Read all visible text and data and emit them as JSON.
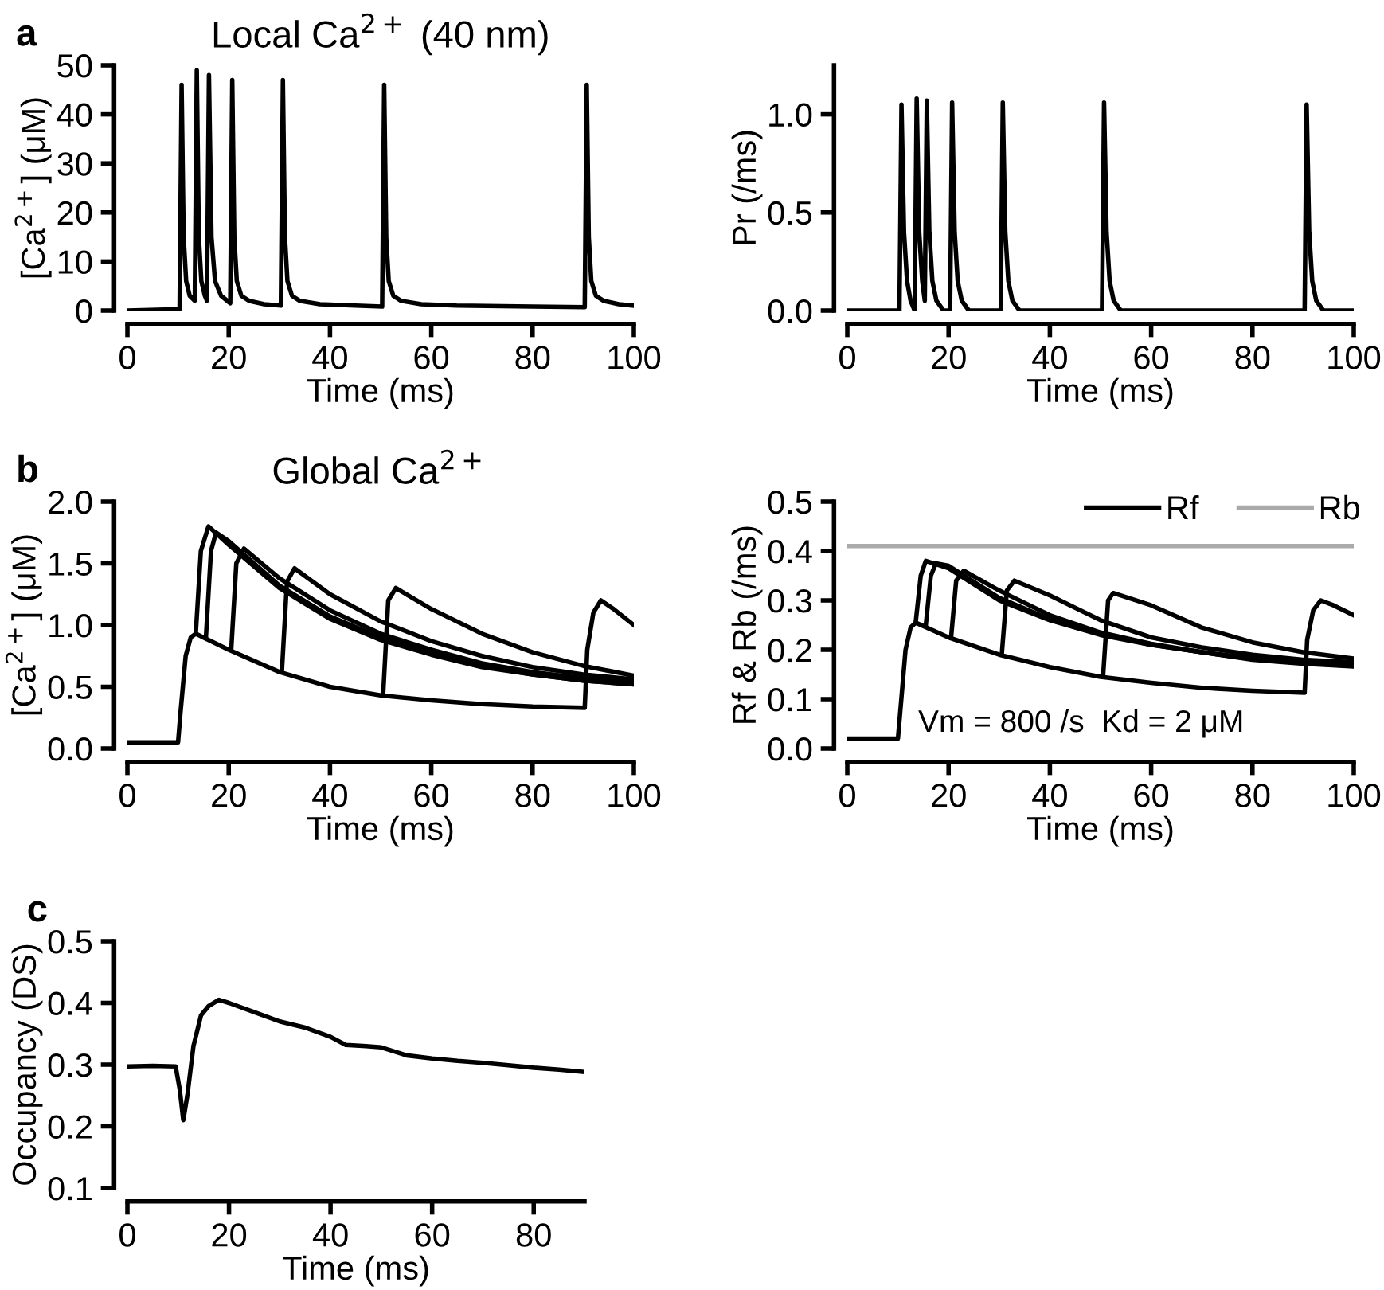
{
  "chart_data": [
    {
      "type": "line",
      "title": "Local Ca$^{2+}$ (40 nm)",
      "xlabel": "Time (ms)",
      "ylabel": "[Ca$^{2+}$] (μM)",
      "annotations": [
        "a"
      ],
      "xlim": [
        0,
        100
      ],
      "ylim": [
        0,
        50
      ],
      "xticks": [
        0,
        20,
        40,
        60,
        80,
        100
      ],
      "yticks": [
        0,
        10,
        20,
        30,
        40,
        50
      ],
      "grid": false,
      "legend": false,
      "marker": "none",
      "line_style": "solid",
      "series": [
        {
          "color": "#000000",
          "x": [
            0,
            10.3,
            10.7,
            11.1,
            11.6,
            12.3,
            13.3,
            13.7,
            14.1,
            14.6,
            15.3,
            15.7,
            16.1,
            16.6,
            17.3,
            18.5,
            20.3,
            20.7,
            21.1,
            21.6,
            22.5,
            24,
            27,
            30.3,
            30.7,
            31.1,
            31.6,
            32.5,
            34,
            38,
            45,
            50.3,
            50.7,
            51.1,
            51.6,
            52.5,
            54,
            58,
            65,
            80,
            90.3,
            90.7,
            91.1,
            91.6,
            92.5,
            94,
            97,
            100
          ],
          "values": [
            0,
            0.3,
            46,
            15,
            6,
            3,
            2,
            49,
            15,
            6,
            3,
            2,
            48,
            15,
            6,
            3,
            1.5,
            47,
            15,
            6,
            3,
            2,
            1.3,
            1,
            47,
            15,
            6,
            3,
            2,
            1.3,
            1,
            0.8,
            46,
            15,
            6,
            3,
            2,
            1.3,
            1,
            0.8,
            0.7,
            46,
            15,
            6,
            3,
            2,
            1.3,
            1
          ]
        }
      ]
    },
    {
      "type": "line",
      "xlabel": "Time (ms)",
      "ylabel": "Pr (/ms)",
      "xlim": [
        0,
        100
      ],
      "ylim": [
        0,
        1.25
      ],
      "xticks": [
        0,
        20,
        40,
        60,
        80,
        100
      ],
      "yticks": [
        {
          "value": 0,
          "label": "0.0"
        },
        {
          "value": 0.5,
          "label": "0.5"
        },
        {
          "value": 1,
          "label": "1.0"
        }
      ],
      "grid": false,
      "legend": false,
      "marker": "none",
      "line_style": "solid",
      "series": [
        {
          "color": "#000000",
          "x": [
            0,
            10.3,
            10.7,
            11.2,
            11.8,
            12.5,
            13.3,
            13.7,
            14.2,
            14.8,
            15.3,
            15.7,
            16.2,
            16.8,
            17.6,
            19,
            20.3,
            20.7,
            21.2,
            21.8,
            22.6,
            24,
            30.3,
            30.7,
            31.2,
            31.8,
            32.6,
            34,
            50.3,
            50.7,
            51.2,
            51.8,
            52.6,
            54,
            90.3,
            90.7,
            91.2,
            91.8,
            92.6,
            94,
            100
          ],
          "values": [
            0,
            0,
            1.05,
            0.4,
            0.15,
            0.05,
            0,
            1.08,
            0.4,
            0.15,
            0.05,
            1.07,
            0.4,
            0.15,
            0.05,
            0,
            0,
            1.06,
            0.4,
            0.15,
            0.05,
            0,
            0,
            1.06,
            0.4,
            0.15,
            0.05,
            0,
            0,
            1.06,
            0.4,
            0.15,
            0.05,
            0,
            0,
            1.05,
            0.4,
            0.15,
            0.05,
            0,
            0
          ]
        }
      ]
    },
    {
      "type": "line",
      "title": "Global Ca$^{2+}$",
      "xlabel": "Time (ms)",
      "ylabel": "[Ca$^{2+}$] (μM)",
      "annotations": [
        "b"
      ],
      "xlim": [
        0,
        100
      ],
      "ylim": [
        0,
        2
      ],
      "xticks": [
        0,
        20,
        40,
        60,
        80,
        100
      ],
      "yticks": [
        {
          "value": 0,
          "label": "0.0"
        },
        {
          "value": 0.5,
          "label": "0.5"
        },
        {
          "value": 1,
          "label": "1.0"
        },
        {
          "value": 1.5,
          "label": "1.5"
        },
        {
          "value": 2,
          "label": "2.0"
        }
      ],
      "grid": false,
      "legend": false,
      "marker": "none",
      "line_style": "solid",
      "series": [
        {
          "color": "#000000",
          "x": [
            0,
            10,
            10.5,
            11.5,
            12.5,
            13.5,
            20,
            30,
            40,
            50,
            60,
            70,
            80,
            90.3,
            90.8,
            92,
            93.5,
            96,
            100
          ],
          "values": [
            0.05,
            0.05,
            0.3,
            0.75,
            0.9,
            0.93,
            0.8,
            0.62,
            0.5,
            0.43,
            0.39,
            0.36,
            0.34,
            0.33,
            0.8,
            1.1,
            1.2,
            1.13,
            1
          ]
        },
        {
          "color": "#000000",
          "x": [
            13.5,
            14.5,
            16,
            20,
            30,
            40,
            50,
            60,
            70,
            80,
            90,
            100
          ],
          "values": [
            0.93,
            1.6,
            1.8,
            1.65,
            1.3,
            1.05,
            0.88,
            0.76,
            0.66,
            0.6,
            0.55,
            0.52
          ]
        },
        {
          "color": "#000000",
          "x": [
            15.5,
            16.5,
            17.5,
            20,
            30,
            40,
            50,
            60,
            70,
            80,
            90,
            100
          ],
          "values": [
            0.9,
            1.6,
            1.75,
            1.68,
            1.32,
            1.07,
            0.9,
            0.77,
            0.67,
            0.6,
            0.55,
            0.52
          ]
        },
        {
          "color": "#000000",
          "x": [
            20.5,
            21.5,
            23,
            30,
            40,
            50,
            60,
            70,
            80,
            90,
            100
          ],
          "values": [
            0.8,
            1.5,
            1.62,
            1.38,
            1.12,
            0.93,
            0.8,
            0.69,
            0.62,
            0.57,
            0.54
          ]
        },
        {
          "color": "#000000",
          "x": [
            30.5,
            31.5,
            33,
            40,
            50,
            60,
            70,
            80,
            90,
            100
          ],
          "values": [
            0.62,
            1.35,
            1.46,
            1.25,
            1.03,
            0.87,
            0.75,
            0.66,
            0.6,
            0.56
          ]
        },
        {
          "color": "#000000",
          "x": [
            50.5,
            51.5,
            53,
            60,
            70,
            80,
            90,
            100
          ],
          "values": [
            0.44,
            1.2,
            1.3,
            1.13,
            0.93,
            0.78,
            0.67,
            0.59
          ]
        }
      ]
    },
    {
      "type": "line",
      "xlabel": "Time (ms)",
      "ylabel": "Rf & Rb (/ms)",
      "annotations": [
        "Vm = 800 /s  Kd = 2 μM"
      ],
      "xlim": [
        0,
        100
      ],
      "ylim": [
        0,
        0.5
      ],
      "xticks": [
        0,
        20,
        40,
        60,
        80,
        100
      ],
      "yticks": [
        {
          "value": 0,
          "label": "0.0"
        },
        0.1,
        0.2,
        0.3,
        0.4,
        0.5
      ],
      "grid": false,
      "legend": "top right",
      "marker": "none",
      "line_style": "solid",
      "series": [
        {
          "name": "Rf",
          "color": "#000000",
          "x": [
            0,
            10,
            10.5,
            11.5,
            12.5,
            13.5,
            20,
            30,
            40,
            50,
            60,
            70,
            80,
            90.3,
            90.8,
            92,
            93.5,
            96,
            100
          ],
          "values": [
            0.02,
            0.02,
            0.08,
            0.2,
            0.245,
            0.255,
            0.225,
            0.19,
            0.165,
            0.145,
            0.133,
            0.123,
            0.117,
            0.113,
            0.22,
            0.28,
            0.3,
            0.29,
            0.27
          ]
        },
        {
          "color": "#000000",
          "x": [
            13.5,
            14.5,
            15.5,
            20,
            30,
            40,
            50,
            60,
            70,
            80,
            90,
            100
          ],
          "values": [
            0.255,
            0.35,
            0.38,
            0.365,
            0.3,
            0.26,
            0.23,
            0.21,
            0.195,
            0.18,
            0.172,
            0.166
          ]
        },
        {
          "color": "#000000",
          "x": [
            15.5,
            16.5,
            17.5,
            20,
            30,
            40,
            50,
            60,
            70,
            80,
            90,
            100
          ],
          "values": [
            0.25,
            0.35,
            0.375,
            0.37,
            0.305,
            0.262,
            0.232,
            0.21,
            0.195,
            0.181,
            0.173,
            0.167
          ]
        },
        {
          "color": "#000000",
          "x": [
            20.5,
            21.5,
            23,
            30,
            40,
            50,
            60,
            70,
            80,
            90,
            100
          ],
          "values": [
            0.225,
            0.34,
            0.36,
            0.32,
            0.27,
            0.235,
            0.212,
            0.195,
            0.183,
            0.175,
            0.17
          ]
        },
        {
          "color": "#000000",
          "x": [
            30.5,
            31.5,
            33,
            40,
            50,
            60,
            70,
            80,
            90,
            100
          ],
          "values": [
            0.19,
            0.32,
            0.34,
            0.31,
            0.26,
            0.225,
            0.205,
            0.19,
            0.18,
            0.175
          ]
        },
        {
          "color": "#000000",
          "x": [
            50.5,
            51.5,
            52.5,
            60,
            70,
            80,
            90,
            100
          ],
          "values": [
            0.145,
            0.3,
            0.315,
            0.29,
            0.245,
            0.215,
            0.195,
            0.182
          ]
        },
        {
          "name": "Rb",
          "color": "#aaaaaa",
          "x": [
            0,
            100
          ],
          "values": [
            0.41,
            0.41
          ]
        }
      ]
    },
    {
      "type": "line",
      "xlabel": "Time (ms)",
      "ylabel": "Occupancy (DS)",
      "annotations": [
        "c"
      ],
      "xlim": [
        0,
        90
      ],
      "ylim": [
        0.1,
        0.5
      ],
      "xticks": [
        0,
        20,
        40,
        60,
        80
      ],
      "yticks": [
        0.1,
        0.2,
        0.3,
        0.4,
        0.5
      ],
      "grid": false,
      "legend": false,
      "marker": "none",
      "line_style": "solid",
      "series": [
        {
          "color": "#000000",
          "x": [
            0,
            5,
            9.5,
            10.3,
            11,
            11.8,
            13,
            14.5,
            16,
            18,
            20,
            25,
            30,
            35,
            40,
            43,
            47,
            50,
            55,
            60,
            65,
            70,
            75,
            80,
            85,
            90
          ],
          "values": [
            0.297,
            0.298,
            0.297,
            0.26,
            0.21,
            0.25,
            0.33,
            0.38,
            0.395,
            0.405,
            0.4,
            0.385,
            0.37,
            0.36,
            0.345,
            0.332,
            0.33,
            0.328,
            0.315,
            0.31,
            0.306,
            0.303,
            0.299,
            0.295,
            0.292,
            0.288
          ]
        }
      ]
    }
  ]
}
